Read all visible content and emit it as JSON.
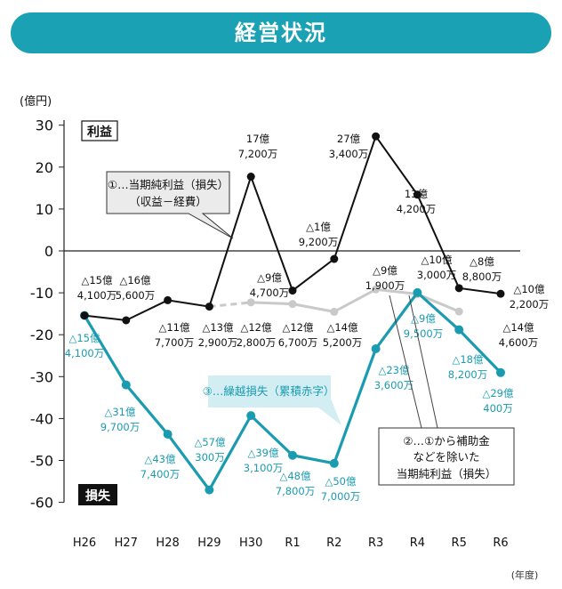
{
  "title": "経営状況",
  "chart_data": {
    "type": "line",
    "ylabel": "(億円)",
    "xlabel": "(年度)",
    "ylim": [
      -60,
      30
    ],
    "yticks": [
      30,
      20,
      10,
      0,
      -10,
      -20,
      -30,
      -40,
      -50,
      -60
    ],
    "categories": [
      "H26",
      "H27",
      "H28",
      "H29",
      "H30",
      "R1",
      "R2",
      "R3",
      "R4",
      "R5",
      "R6"
    ],
    "profit_label": "利益",
    "loss_label": "損失",
    "series": [
      {
        "id": "net",
        "color": "#111111",
        "values": [
          -15.41,
          -16.56,
          -11.77,
          -13.29,
          17.72,
          -9.47,
          -1.92,
          27.34,
          13.42,
          -8.88,
          -10.22
        ],
        "labels": [
          [
            "△15億",
            "4,100万"
          ],
          [
            "△16億",
            "5,600万"
          ],
          [
            "△11億",
            "7,700万"
          ],
          [
            "△13億",
            "2,900万"
          ],
          [
            "17億",
            "7,200万"
          ],
          [
            "△9億",
            "4,700万"
          ],
          [
            "△1億",
            "9,200万"
          ],
          [
            "27億",
            "3,400万"
          ],
          [
            "13億",
            "4,200万"
          ],
          [
            "△8億",
            "8,800万"
          ],
          [
            "△10億",
            "2,200万"
          ]
        ]
      },
      {
        "id": "adjusted",
        "color": "#c9c9c9",
        "start_index": 3,
        "values": [
          null,
          null,
          null,
          -13.29,
          -12.28,
          -12.67,
          -14.52,
          -9.19,
          -10.3,
          -14.46,
          null
        ],
        "labels": [
          null,
          null,
          null,
          null,
          [
            "△12億",
            "2,800万"
          ],
          [
            "△12億",
            "6,700万"
          ],
          [
            "△14億",
            "5,200万"
          ],
          [
            "△9億",
            "1,900万"
          ],
          [
            "△10億",
            "3,000万"
          ],
          [
            "△14億",
            "4,600万"
          ],
          null
        ]
      },
      {
        "id": "cumulative",
        "color": "#1a9bb0",
        "values": [
          -15.41,
          -31.97,
          -43.74,
          -57.03,
          -39.31,
          -48.78,
          -50.7,
          -23.36,
          -9.95,
          -18.82,
          -29.04
        ],
        "labels": [
          [
            "△15億",
            "4,100万"
          ],
          [
            "△31億",
            "9,700万"
          ],
          [
            "△43億",
            "7,400万"
          ],
          [
            "△57億",
            "300万"
          ],
          [
            "△39億",
            "3,100万"
          ],
          [
            "△48億",
            "7,800万"
          ],
          [
            "△50億",
            "7,000万"
          ],
          [
            "△23億",
            "3,600万"
          ],
          [
            "△9億",
            "9,500万"
          ],
          [
            "△18億",
            "8,200万"
          ],
          [
            "△29億",
            "400万"
          ]
        ]
      }
    ],
    "callouts": [
      {
        "id": "c1",
        "lines": [
          "①…当期純利益（損失）",
          "（収益－経費）"
        ]
      },
      {
        "id": "c2",
        "lines": [
          "③…繰越損失（累積赤字）"
        ]
      },
      {
        "id": "c3",
        "lines": [
          "②…①から補助金",
          "などを除いた",
          "当期純利益（損失）"
        ]
      }
    ]
  }
}
